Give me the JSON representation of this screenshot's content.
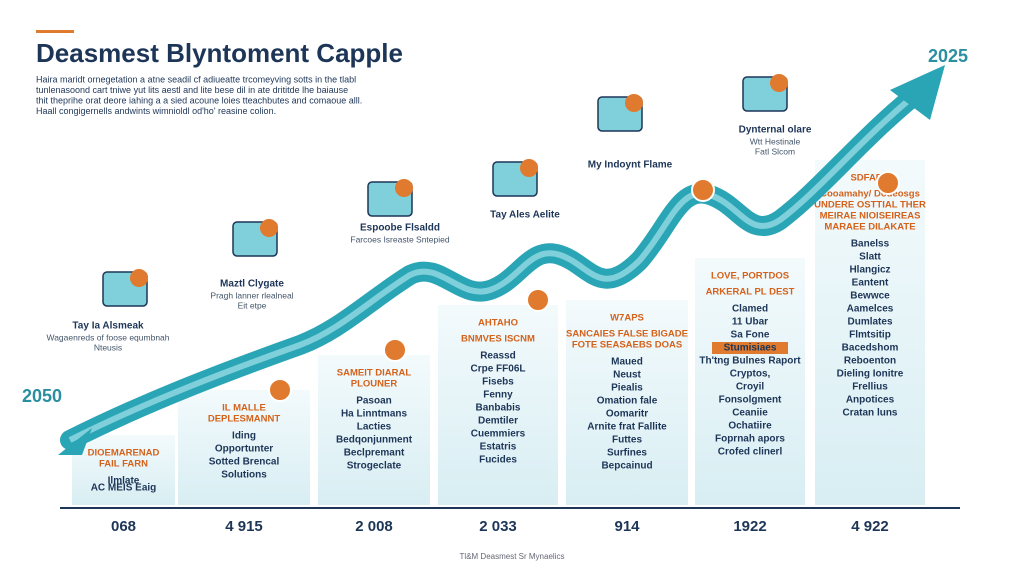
{
  "header": {
    "title": "Deasmest Blyntoment Capple",
    "intro": [
      "Haira maridt ornegetation a atne seadil cf adiueatte trcomeyving sotts in the tlabl",
      "tunlenasoond cart tniwe yut lits aestl and lite bese dil in ate drititde lhe baiause",
      "thit theprihe orat deore iahing a a sied acoune loies tteachbutes and comaoue alll.",
      "Haall congigernells andwints wimnioldl od'ho' reasine colion."
    ]
  },
  "year_start": "2050",
  "year_end": "2025",
  "milestones": [
    {
      "label": "Tay Ia Alsmeak",
      "notes": [
        "Wagaenreds of foose equmbnah",
        "Nteusis"
      ]
    },
    {
      "label": "Maztl Clygate",
      "notes": [
        "Pragh lanner rlealneal",
        "Eit etpe"
      ]
    },
    {
      "label": "Espoobe Flsaldd",
      "notes": [
        "Farcoes Isreaste Sntepied"
      ]
    },
    {
      "label": "Tay Ales Aelite",
      "notes": []
    },
    {
      "label": "My Indoynt Flame",
      "notes": []
    },
    {
      "label": "Dynternal olare",
      "notes": [
        "Wtt Hestinale",
        "Fatl Slcom"
      ]
    }
  ],
  "columns": [
    {
      "heading": [
        "DIOEMARENAD",
        "FAIL FARN"
      ],
      "items": [
        "Ilmlate",
        "AC MEIS Eaig"
      ],
      "year": "068"
    },
    {
      "heading": [
        "IL MALLE",
        "DEPLESMANNT"
      ],
      "items": [
        "Iding",
        "Opportunter",
        "Sotted Brencal",
        "Solutions"
      ],
      "year": "4 915"
    },
    {
      "heading": [
        "SAMEIT DIARAL",
        "PLOUNER"
      ],
      "items": [
        "Pasoan",
        "Ha Linntmans",
        "Lacties",
        "Bedqonjunment",
        "Beclpremant",
        "Strogeclate"
      ],
      "year": "2 008"
    },
    {
      "heading": [
        "AHTAHO",
        "BNMVES ISCNM"
      ],
      "items": [
        "Reassd",
        "Crpe FF06L",
        "Fisebs",
        "Fenny",
        "Banbabis",
        "Demtiler",
        "Cuemmiers",
        "Estatris",
        "Fucides"
      ],
      "year": "2 033"
    },
    {
      "heading": [
        "W7APS",
        "SANCAIES FALSE BIGADE",
        "FOTE SEASAEBS DOAS"
      ],
      "items": [
        "Maued",
        "Neust",
        "Piealis",
        "Omation fale",
        "Oomaritr",
        "Arnite frat Fallite",
        "Futtes",
        "Surfines",
        "Bepcainud"
      ],
      "year": "914"
    },
    {
      "heading": [
        "LOVE, PORTDOS",
        "ARKERAL PL DEST"
      ],
      "items": [
        "Clamed",
        "11 Ubar",
        "Sa Fone",
        "Stumisiaes",
        "Th'tng Bulnes Raport",
        "Cryptos,",
        "Croyil",
        "Fonsolgment",
        "Ceaniie",
        "Ochatiire",
        "Foprnah apors",
        "Crofed clinerl"
      ],
      "year": "1922"
    },
    {
      "heading": [
        "SDFARK",
        "Cooamahy/ Doueosgs",
        "UNDERE OSTTIAL THER",
        "MEIRAE NIOISEIREAS",
        "MARAEE DILAKATE"
      ],
      "items": [
        "Banelss",
        "Slatt",
        "Hlangicz",
        "Eantent",
        "Bewwce",
        "Aamelces",
        "Dumlates",
        "Flmtsitip",
        "Bacedshom",
        "Reboenton",
        "Dieling Ionitre",
        "Frellius",
        "Anpotices",
        "Cratan luns"
      ],
      "year": "4 922"
    }
  ],
  "footer": "Tl&M Deasmest Sr Mynaelics"
}
